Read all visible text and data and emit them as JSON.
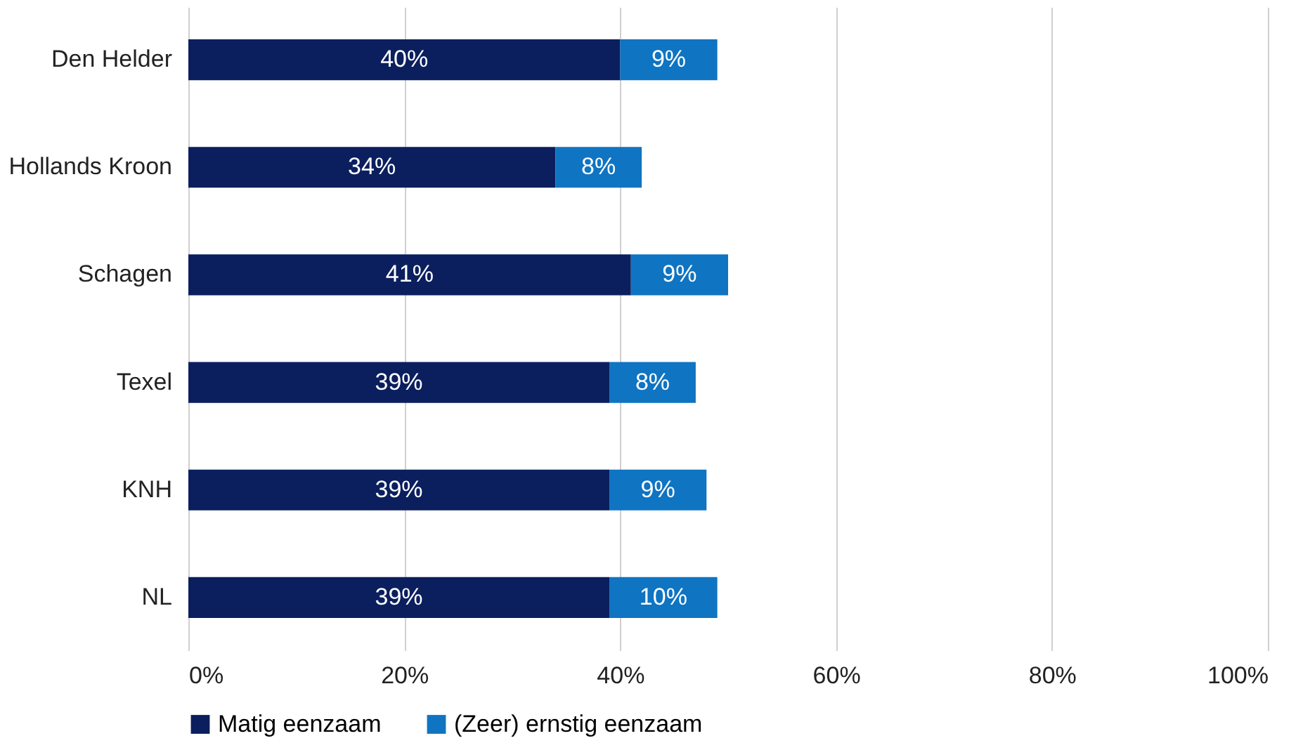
{
  "chart_data": {
    "type": "bar",
    "orientation": "horizontal",
    "stacked": true,
    "categories": [
      "Den Helder",
      "Hollands Kroon",
      "Schagen",
      "Texel",
      "KNH",
      "NL"
    ],
    "series": [
      {
        "name": "Matig eenzaam",
        "color": "#0b1f5e",
        "values": [
          40,
          34,
          41,
          39,
          39,
          39
        ],
        "value_labels": [
          "40%",
          "34%",
          "41%",
          "39%",
          "39%",
          "39%"
        ]
      },
      {
        "name": "(Zeer) ernstig eenzaam",
        "color": "#0f74c2",
        "values": [
          9,
          8,
          9,
          8,
          9,
          10
        ],
        "value_labels": [
          "9%",
          "8%",
          "9%",
          "8%",
          "9%",
          "10%"
        ]
      }
    ],
    "xlim": [
      0,
      100
    ],
    "xticks": [
      {
        "value": 0,
        "label": "0%"
      },
      {
        "value": 20,
        "label": "20%"
      },
      {
        "value": 40,
        "label": "40%"
      },
      {
        "value": 60,
        "label": "60%"
      },
      {
        "value": 80,
        "label": "80%"
      },
      {
        "value": 100,
        "label": "100%"
      }
    ],
    "grid": "x",
    "legend": "bottom"
  }
}
